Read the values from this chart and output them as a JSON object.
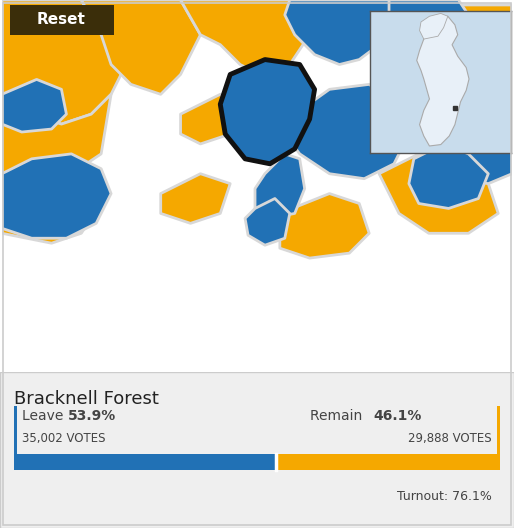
{
  "title": "Bracknell Forest",
  "leave_pct": 53.9,
  "remain_pct": 46.1,
  "leave_votes": "35,002",
  "remain_votes": "29,888",
  "turnout_label": "Turnout: 76.1%",
  "reset_label": "Reset",
  "votes_label": "VOTES",
  "leave_color": "#2171b5",
  "remain_color": "#f5a800",
  "map_bg_color": "#f5a800",
  "map_border_color": "#d8d8d8",
  "panel_bg_color": "#efefef",
  "reset_bg_color": "#3b2e0a",
  "reset_text_color": "#ffffff",
  "text_color": "#444444",
  "title_color": "#222222",
  "outer_border_color": "#cccccc",
  "fig_bg_color": "#ffffff",
  "inset_bg_color": "#c8dcec",
  "uk_fill_color": "#e8f0f8",
  "highlight_border": "#111111"
}
